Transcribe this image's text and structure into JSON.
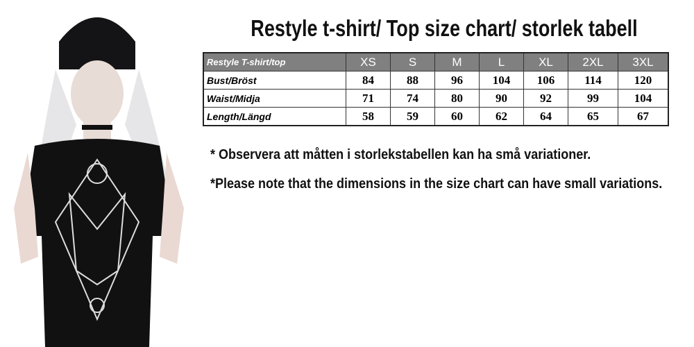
{
  "title": "Restyle t-shirt/ Top size chart/ storlek tabell",
  "table": {
    "header_label": "Restyle T-shirt/top",
    "sizes": [
      "XS",
      "S",
      "M",
      "L",
      "XL",
      "2XL",
      "3XL"
    ],
    "rows": [
      {
        "label": "Bust/Bröst",
        "values": [
          "84",
          "88",
          "96",
          "104",
          "106",
          "114",
          "120"
        ]
      },
      {
        "label": "Waist/Midja",
        "values": [
          "71",
          "74",
          "80",
          "90",
          "92",
          "99",
          "104"
        ]
      },
      {
        "label": "Length/Längd",
        "values": [
          "58",
          "59",
          "60",
          "62",
          "64",
          "65",
          "67"
        ]
      }
    ]
  },
  "notes": {
    "swedish": "* Observera att måtten i storlekstabellen kan ha små variationer.",
    "english": "*Please note that the dimensions in the size chart can have small variations."
  },
  "colors": {
    "header_bg": "#808080",
    "header_text": "#ffffff"
  }
}
